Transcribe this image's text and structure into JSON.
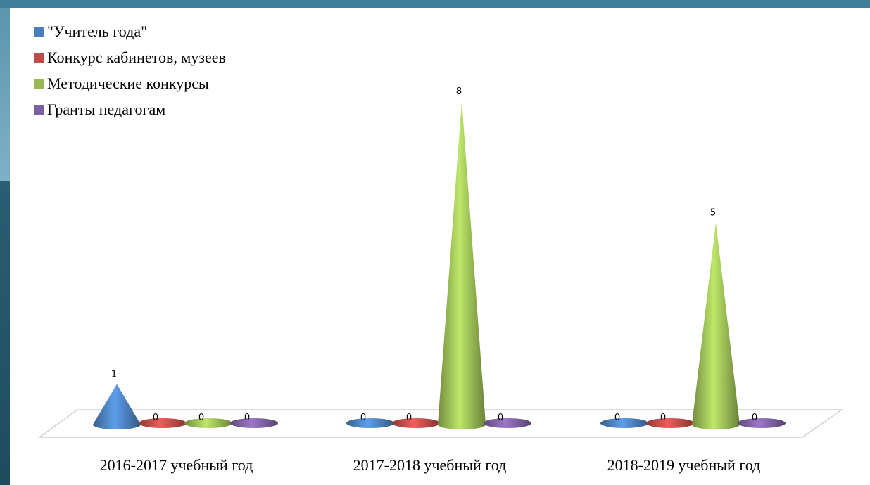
{
  "colors": {
    "background": "#3f7f99",
    "series": [
      "#4a7ebb",
      "#be4b48",
      "#98b954",
      "#7d60a0"
    ]
  },
  "chart_data": {
    "type": "bar",
    "bar_shape": "cone",
    "title": "",
    "xlabel": "",
    "ylabel": "",
    "ylim": [
      0,
      8
    ],
    "grid": false,
    "legend_position": "top-left",
    "categories": [
      "2016-2017 учебный год",
      "2017-2018 учебный год",
      "2018-2019 учебный год"
    ],
    "series": [
      {
        "name": "\"Учитель года\"",
        "values": [
          1,
          0,
          0
        ]
      },
      {
        "name": "Конкурс кабинетов, музеев",
        "values": [
          0,
          0,
          0
        ]
      },
      {
        "name": "Методические конкурсы",
        "values": [
          0,
          8,
          5
        ]
      },
      {
        "name": "Гранты педагогам",
        "values": [
          0,
          0,
          0
        ]
      }
    ]
  }
}
